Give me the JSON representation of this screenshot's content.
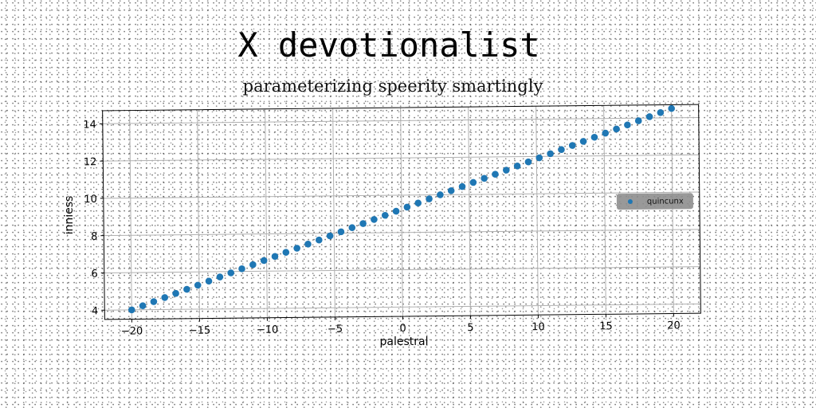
{
  "title": "X devotionalist",
  "subtitle": "parameterizing speerity smartingly",
  "chart_data": {
    "type": "scatter",
    "xlabel": "palestral",
    "ylabel": "inniess",
    "xlim": [
      -22,
      22
    ],
    "ylim": [
      3.5,
      14.7
    ],
    "xticks": [
      -20,
      -15,
      -10,
      -5,
      0,
      5,
      10,
      15,
      20
    ],
    "xtick_labels": [
      "−20",
      "−15",
      "−10",
      "−5",
      "0",
      "5",
      "10",
      "15",
      "20"
    ],
    "yticks": [
      4,
      6,
      8,
      10,
      12,
      14
    ],
    "ytick_labels": [
      "4",
      "6",
      "8",
      "10",
      "12",
      "14"
    ],
    "grid": true,
    "legend_position": "right",
    "series": [
      {
        "name": "quincunx",
        "color": "#1f77b4",
        "x_start": -20,
        "x_end": 20,
        "y_start": 4.0,
        "y_end": 14.5,
        "n_points": 50
      }
    ]
  }
}
